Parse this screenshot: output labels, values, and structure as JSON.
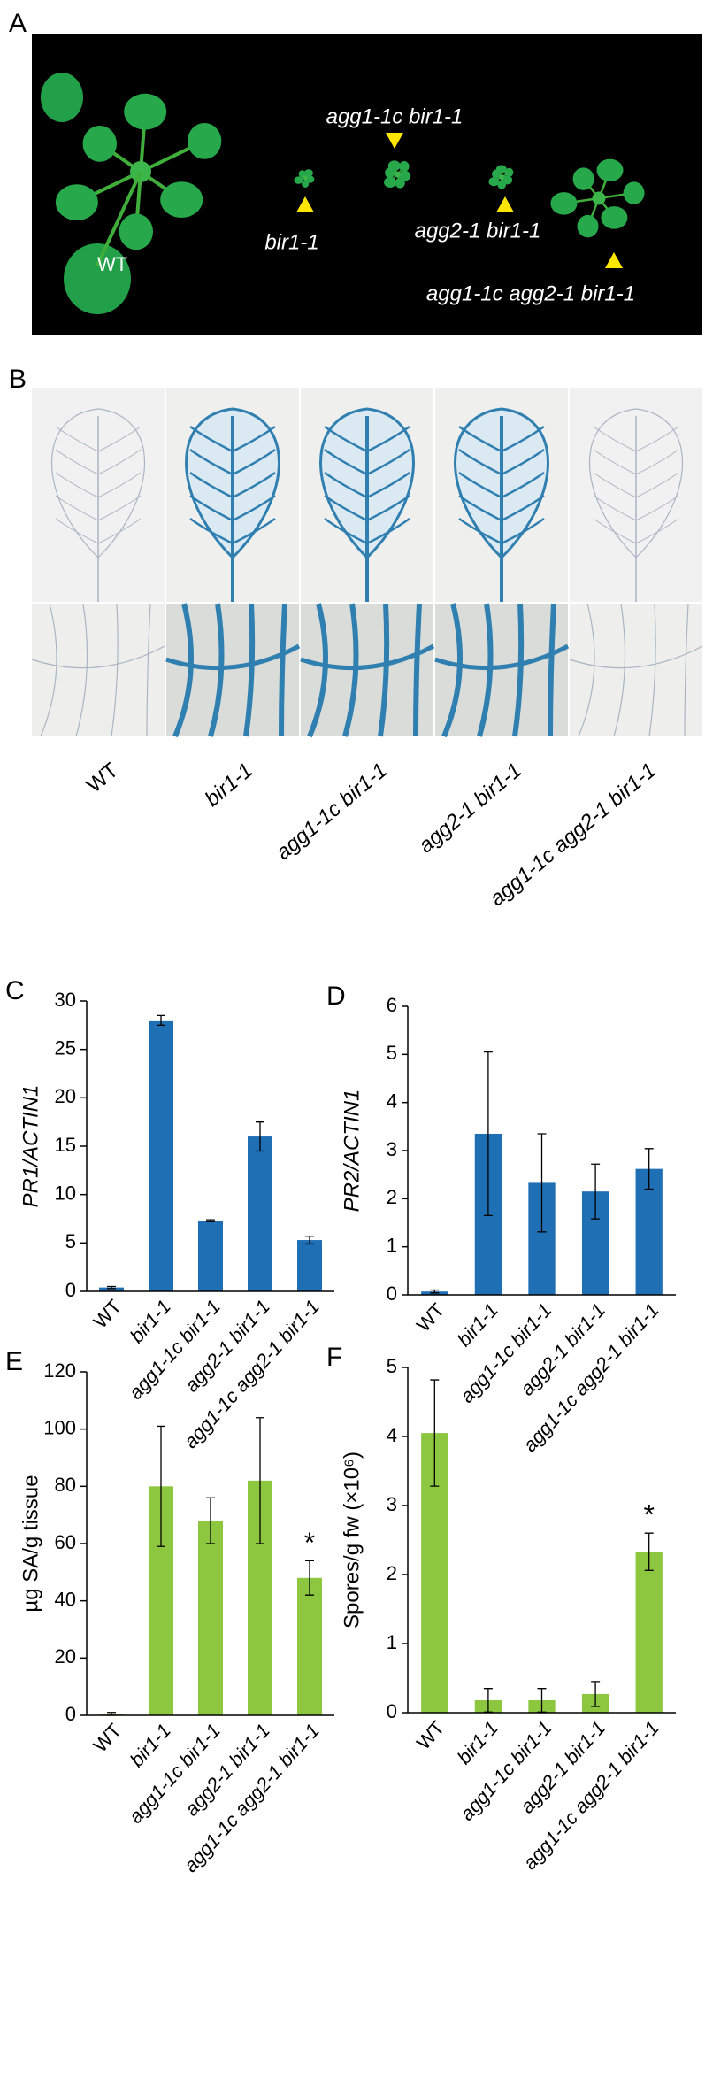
{
  "panel_a": {
    "label": "A",
    "plants": [
      "WT",
      "bir1-1",
      "agg1-1c bir1-1",
      "agg2-1 bir1-1",
      "agg1-1c agg2-1 bir1-1"
    ]
  },
  "panel_b": {
    "label": "B",
    "columns": [
      "WT",
      "bir1-1",
      "agg1-1c bir1-1",
      "agg2-1 bir1-1",
      "agg1-1c agg2-1 bir1-1"
    ]
  },
  "chart_data": [
    {
      "type": "bar",
      "panel": "C",
      "y_label": "PR1/ACTIN1",
      "color": "#1f6fb5",
      "categories": [
        "WT",
        "bir1-1",
        "agg1-1c bir1-1",
        "agg2-1 bir1-1",
        "agg1-1c agg2-1 bir1-1"
      ],
      "values": [
        0.4,
        28,
        7.3,
        16,
        5.3
      ],
      "errors": [
        0.1,
        0.5,
        0.1,
        1.5,
        0.4
      ],
      "ylim": [
        0,
        30
      ],
      "yticks": [
        0,
        5,
        10,
        15,
        20,
        25,
        30
      ]
    },
    {
      "type": "bar",
      "panel": "D",
      "y_label": "PR2/ACTIN1",
      "color": "#1f6fb5",
      "categories": [
        "WT",
        "bir1-1",
        "agg1-1c bir1-1",
        "agg2-1 bir1-1",
        "agg1-1c agg2-1 bir1-1"
      ],
      "values": [
        0.07,
        3.35,
        2.33,
        2.15,
        2.62
      ],
      "errors": [
        0.03,
        1.7,
        1.02,
        0.57,
        0.42
      ],
      "ylim": [
        0,
        6
      ],
      "yticks": [
        0,
        1,
        2,
        3,
        4,
        5,
        6
      ]
    },
    {
      "type": "bar",
      "panel": "E",
      "y_label": "µg SA/g tissue",
      "color": "#8dc63f",
      "categories": [
        "WT",
        "bir1-1",
        "agg1-1c bir1-1",
        "agg2-1 bir1-1",
        "agg1-1c agg2-1 bir1-1"
      ],
      "values": [
        0.5,
        80,
        68,
        82,
        48
      ],
      "errors": [
        0.5,
        21,
        8,
        22,
        6
      ],
      "ylim": [
        0,
        120
      ],
      "yticks": [
        0,
        20,
        40,
        60,
        80,
        100,
        120
      ],
      "annotations": [
        {
          "text": "*",
          "x": "agg1-1c agg2-1 bir1-1"
        }
      ]
    },
    {
      "type": "bar",
      "panel": "F",
      "y_label": "Spores/g fw (×10⁶)",
      "color": "#8dc63f",
      "categories": [
        "WT",
        "bir1-1",
        "agg1-1c bir1-1",
        "agg2-1 bir1-1",
        "agg1-1c agg2-1 bir1-1"
      ],
      "values": [
        4.05,
        0.18,
        0.18,
        0.27,
        2.33
      ],
      "errors": [
        0.77,
        0.17,
        0.17,
        0.18,
        0.27
      ],
      "ylim": [
        0,
        5
      ],
      "yticks": [
        0,
        1,
        2,
        3,
        4,
        5
      ],
      "annotations": [
        {
          "text": "*",
          "x": "agg1-1c agg2-1 bir1-1"
        }
      ]
    }
  ]
}
